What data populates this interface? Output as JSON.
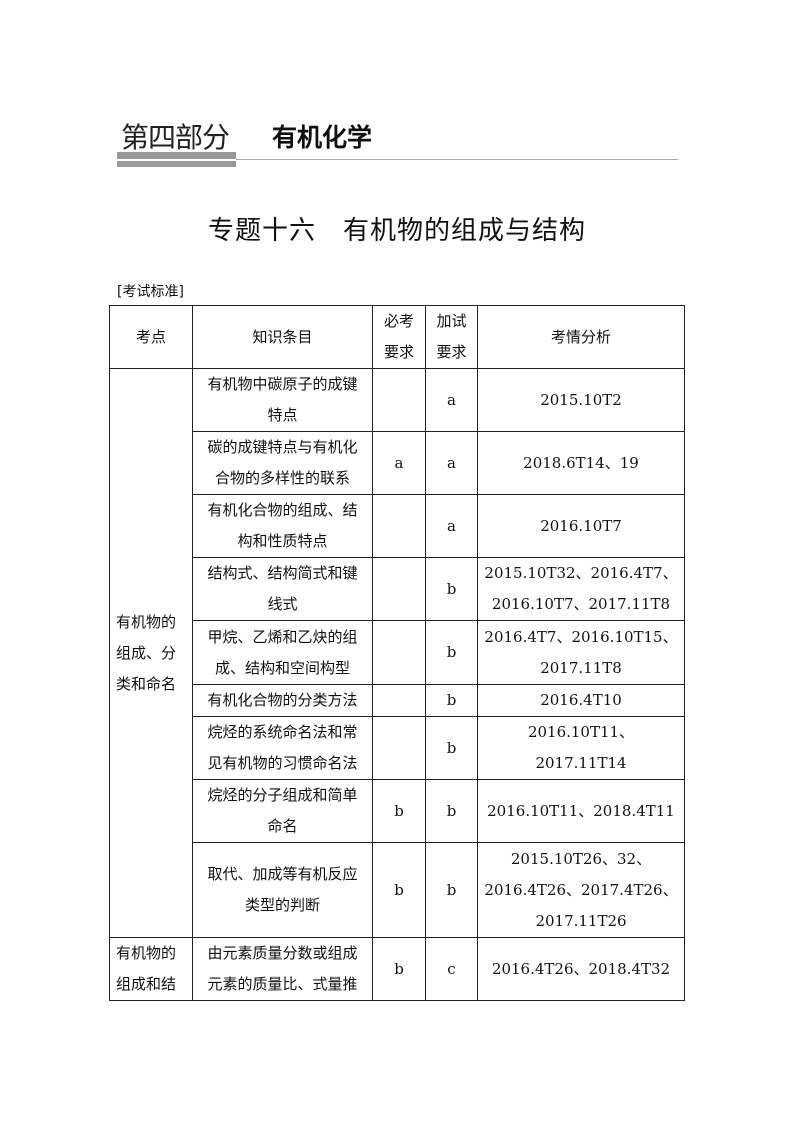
{
  "header": {
    "part": "第四部分",
    "part_name": "有机化学"
  },
  "title": "专题十六　有机物的组成与结构",
  "section_label": "[考试标准]",
  "table": {
    "headers": [
      "考点",
      "知识条目",
      "必考要求",
      "加试要求",
      "考情分析"
    ],
    "groups": [
      "有机物的组成、分类和命名",
      "有机物的组成和结"
    ],
    "rows": [
      {
        "item": "有机物中碳原子的成键特点",
        "req": "",
        "extra": "a",
        "analysis": "2015.10T2"
      },
      {
        "item": "碳的成键特点与有机化合物的多样性的联系",
        "req": "a",
        "extra": "a",
        "analysis": "2018.6T14、19"
      },
      {
        "item": "有机化合物的组成、结构和性质特点",
        "req": "",
        "extra": "a",
        "analysis": "2016.10T7"
      },
      {
        "item": "结构式、结构简式和键线式",
        "req": "",
        "extra": "b",
        "analysis": "2015.10T32、2016.4T7、2016.10T7、2017.11T8"
      },
      {
        "item": "甲烷、乙烯和乙炔的组成、结构和空间构型",
        "req": "",
        "extra": "b",
        "analysis": "2016.4T7、2016.10T15、2017.11T8"
      },
      {
        "item": "有机化合物的分类方法",
        "req": "",
        "extra": "b",
        "analysis": "2016.4T10"
      },
      {
        "item": "烷烃的系统命名法和常见有机物的习惯命名法",
        "req": "",
        "extra": "b",
        "analysis": "2016.10T11、2017.11T14"
      },
      {
        "item": "烷烃的分子组成和简单命名",
        "req": "b",
        "extra": "b",
        "analysis": "2016.10T11、2018.4T11"
      },
      {
        "item": "取代、加成等有机反应类型的判断",
        "req": "b",
        "extra": "b",
        "analysis": "2015.10T26、32、2016.4T26、2017.4T26、2017.11T26"
      },
      {
        "item": "由元素质量分数或组成元素的质量比、式量推",
        "req": "b",
        "extra": "c",
        "analysis": "2016.4T26、2018.4T32"
      }
    ]
  }
}
